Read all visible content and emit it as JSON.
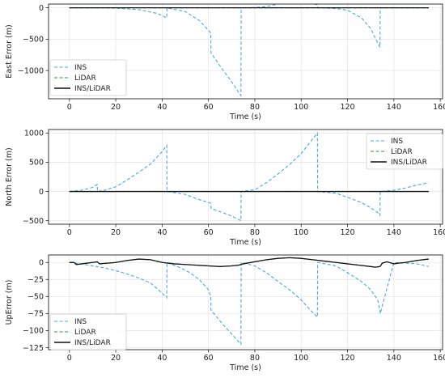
{
  "chart_data": [
    {
      "type": "line",
      "xlabel": "Time (s)",
      "ylabel": "East Error (m)",
      "xlim": [
        -9,
        161
      ],
      "ylim": [
        -1450,
        60
      ],
      "xticks": [
        0,
        20,
        40,
        60,
        80,
        100,
        120,
        140,
        160
      ],
      "yticks": [
        0,
        -500,
        -1000
      ],
      "grid": true,
      "legend": "bottom-left",
      "series": [
        {
          "name": "INS",
          "color": "#4aa8e0",
          "dash": "dashed",
          "x": [
            0,
            10,
            20,
            30,
            38,
            42,
            42.1,
            50,
            56,
            61,
            61.1,
            66,
            70,
            74,
            74.1,
            80,
            85,
            90,
            100,
            104,
            107,
            107.1,
            115,
            120,
            126,
            130,
            133,
            134,
            134.1,
            140,
            150,
            155
          ],
          "y": [
            0,
            0,
            -5,
            -30,
            -90,
            -160,
            0,
            -60,
            -200,
            -400,
            -720,
            -980,
            -1180,
            -1400,
            0,
            5,
            20,
            60,
            80,
            70,
            50,
            0,
            -10,
            -40,
            -160,
            -330,
            -560,
            -630,
            0,
            0,
            0,
            0
          ]
        },
        {
          "name": "LiDAR",
          "color": "#2e9a2e",
          "dash": "dashed",
          "x": [
            0,
            155
          ],
          "y": [
            0,
            0
          ]
        },
        {
          "name": "INS/LiDAR",
          "color": "#111111",
          "dash": "solid",
          "x": [
            0,
            155
          ],
          "y": [
            0,
            0
          ]
        }
      ]
    },
    {
      "type": "line",
      "xlabel": "Time (s)",
      "ylabel": "North Error (m)",
      "xlim": [
        -9,
        161
      ],
      "ylim": [
        -560,
        1060
      ],
      "xticks": [
        0,
        20,
        40,
        60,
        80,
        100,
        120,
        140,
        160
      ],
      "yticks": [
        1000,
        500,
        0,
        -500
      ],
      "grid": true,
      "legend": "top-right",
      "series": [
        {
          "name": "INS",
          "color": "#4aa8e0",
          "dash": "dashed",
          "x": [
            0,
            5,
            10,
            12,
            12.1,
            15,
            20,
            25,
            30,
            35,
            40,
            42,
            42.1,
            50,
            56,
            61,
            61.1,
            66,
            70,
            74,
            74.1,
            80,
            85,
            90,
            95,
            100,
            104,
            107,
            107.1,
            115,
            120,
            126,
            130,
            133,
            134,
            134.1,
            140,
            145,
            150,
            155
          ],
          "y": [
            0,
            20,
            70,
            120,
            0,
            20,
            80,
            200,
            330,
            470,
            680,
            790,
            0,
            -50,
            -140,
            -200,
            -290,
            -360,
            -420,
            -500,
            0,
            30,
            150,
            300,
            460,
            650,
            850,
            1000,
            0,
            -30,
            -100,
            -190,
            -280,
            -360,
            -410,
            0,
            20,
            60,
            110,
            150
          ]
        },
        {
          "name": "LiDAR",
          "color": "#2e9a2e",
          "dash": "dashed",
          "x": [
            0,
            155
          ],
          "y": [
            0,
            0
          ]
        },
        {
          "name": "INS/LiDAR",
          "color": "#111111",
          "dash": "solid",
          "x": [
            0,
            155
          ],
          "y": [
            0,
            0
          ]
        }
      ]
    },
    {
      "type": "line",
      "xlabel": "Time (s)",
      "ylabel": "UpError (m)",
      "xlim": [
        -9,
        161
      ],
      "ylim": [
        -128,
        11
      ],
      "xticks": [
        0,
        20,
        40,
        60,
        80,
        100,
        120,
        140,
        160
      ],
      "yticks": [
        0,
        -25,
        -50,
        -75,
        -100,
        -125
      ],
      "grid": true,
      "legend": "bottom-left",
      "series": [
        {
          "name": "INS",
          "color": "#4aa8e0",
          "dash": "dashed",
          "x": [
            0,
            5,
            10,
            15,
            20,
            25,
            30,
            35,
            40,
            42,
            42.1,
            48,
            52,
            56,
            60,
            61,
            61.1,
            66,
            70,
            74,
            74.1,
            80,
            85,
            90,
            95,
            100,
            104,
            107,
            107.1,
            115,
            120,
            126,
            130,
            133,
            134,
            134.1,
            140,
            150,
            155
          ],
          "y": [
            0,
            -2,
            -5,
            -8,
            -12,
            -17,
            -23,
            -30,
            -45,
            -52,
            0,
            -8,
            -15,
            -25,
            -40,
            -50,
            -70,
            -90,
            -105,
            -120,
            0,
            -5,
            -15,
            -28,
            -40,
            -55,
            -70,
            -80,
            0,
            -5,
            -15,
            -28,
            -40,
            -55,
            -70,
            -75,
            0,
            -2,
            -6
          ]
        },
        {
          "name": "LiDAR",
          "color": "#2e9a2e",
          "dash": "dashed",
          "x": [
            0,
            2,
            3,
            10,
            12,
            13,
            20,
            25,
            30,
            35,
            40,
            45,
            50,
            55,
            60,
            65,
            70,
            73,
            75,
            80,
            85,
            90,
            95,
            100,
            105,
            110,
            115,
            120,
            125,
            130,
            132,
            134,
            135,
            137,
            138,
            140,
            142,
            145,
            150,
            155
          ],
          "y": [
            0,
            0,
            -3,
            0,
            1,
            -2,
            0,
            3,
            5,
            4,
            0,
            -2,
            -3,
            -4,
            -5,
            -6,
            -5,
            -4,
            -2,
            1,
            4,
            6,
            7,
            6,
            4,
            2,
            0,
            -2,
            -4,
            -6,
            -7,
            -6,
            -1,
            1,
            0,
            -2,
            -1,
            0,
            3,
            5
          ]
        },
        {
          "name": "INS/LiDAR",
          "color": "#111111",
          "dash": "solid",
          "x": [
            0,
            2,
            3,
            10,
            12,
            13,
            20,
            25,
            30,
            35,
            40,
            45,
            50,
            55,
            60,
            65,
            70,
            73,
            75,
            80,
            85,
            90,
            95,
            100,
            105,
            110,
            115,
            120,
            125,
            130,
            132,
            134,
            135,
            137,
            138,
            140,
            142,
            145,
            150,
            155
          ],
          "y": [
            0,
            0,
            -3,
            0,
            1,
            -2,
            0,
            3,
            5,
            4,
            0,
            -2,
            -3,
            -4,
            -5,
            -6,
            -5,
            -4,
            -2,
            1,
            4,
            6,
            7,
            6,
            4,
            2,
            0,
            -2,
            -4,
            -6,
            -7,
            -6,
            -1,
            1,
            0,
            -2,
            -1,
            0,
            3,
            5
          ]
        }
      ]
    }
  ]
}
